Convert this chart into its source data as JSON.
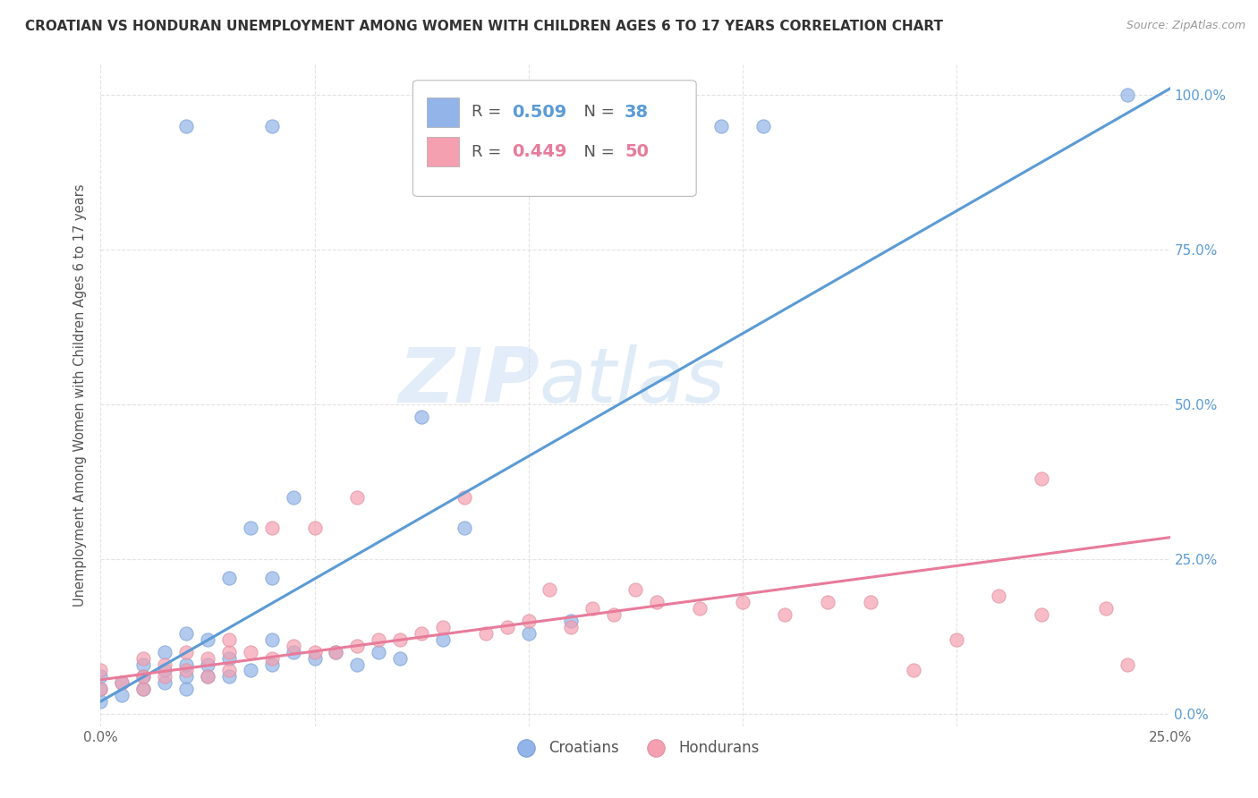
{
  "title": "CROATIAN VS HONDURAN UNEMPLOYMENT AMONG WOMEN WITH CHILDREN AGES 6 TO 17 YEARS CORRELATION CHART",
  "source": "Source: ZipAtlas.com",
  "ylabel": "Unemployment Among Women with Children Ages 6 to 17 years",
  "xlim": [
    0.0,
    0.25
  ],
  "ylim": [
    -0.02,
    1.05
  ],
  "x_ticks": [
    0.0,
    0.05,
    0.1,
    0.15,
    0.2,
    0.25
  ],
  "x_tick_labels": [
    "0.0%",
    "",
    "",
    "",
    "",
    "25.0%"
  ],
  "y_ticks": [
    0.0,
    0.25,
    0.5,
    0.75,
    1.0
  ],
  "y_tick_labels_right": [
    "0.0%",
    "25.0%",
    "50.0%",
    "75.0%",
    "100.0%"
  ],
  "croatian_color": "#92b4e8",
  "honduran_color": "#f4a0b0",
  "trend_color_croatian": "#5b9bd5",
  "trend_color_honduran": "#e87b9a",
  "watermark_zip": "ZIP",
  "watermark_atlas": "atlas",
  "legend_r_croatian": "R = 0.509",
  "legend_n_croatian": "N = 38",
  "legend_r_honduran": "R = 0.449",
  "legend_n_honduran": "N = 50",
  "cr_trend_x0": 0.0,
  "cr_trend_y0": 0.02,
  "cr_trend_x1": 0.25,
  "cr_trend_y1": 1.01,
  "ho_trend_x0": 0.0,
  "ho_trend_y0": 0.055,
  "ho_trend_x1": 0.25,
  "ho_trend_y1": 0.285,
  "croatian_x": [
    0.0,
    0.0,
    0.0,
    0.005,
    0.005,
    0.01,
    0.01,
    0.01,
    0.015,
    0.015,
    0.015,
    0.02,
    0.02,
    0.02,
    0.02,
    0.025,
    0.025,
    0.025,
    0.03,
    0.03,
    0.03,
    0.035,
    0.035,
    0.04,
    0.04,
    0.04,
    0.045,
    0.045,
    0.05,
    0.055,
    0.06,
    0.065,
    0.07,
    0.075,
    0.08,
    0.085,
    0.1,
    0.11
  ],
  "croatian_y": [
    0.02,
    0.04,
    0.06,
    0.03,
    0.05,
    0.04,
    0.06,
    0.08,
    0.05,
    0.07,
    0.1,
    0.04,
    0.06,
    0.08,
    0.13,
    0.06,
    0.08,
    0.12,
    0.06,
    0.09,
    0.22,
    0.07,
    0.3,
    0.08,
    0.12,
    0.22,
    0.1,
    0.35,
    0.09,
    0.1,
    0.08,
    0.1,
    0.09,
    0.48,
    0.12,
    0.3,
    0.13,
    0.15
  ],
  "croatian_x_top": [
    0.02,
    0.04,
    0.12,
    0.13,
    0.145,
    0.155,
    0.24
  ],
  "croatian_y_top": [
    0.95,
    0.95,
    0.95,
    0.95,
    0.95,
    0.95,
    1.0
  ],
  "honduran_x": [
    0.0,
    0.0,
    0.005,
    0.01,
    0.01,
    0.01,
    0.015,
    0.015,
    0.02,
    0.02,
    0.025,
    0.025,
    0.03,
    0.03,
    0.03,
    0.035,
    0.04,
    0.04,
    0.045,
    0.05,
    0.05,
    0.055,
    0.06,
    0.06,
    0.065,
    0.07,
    0.075,
    0.08,
    0.085,
    0.09,
    0.095,
    0.1,
    0.105,
    0.11,
    0.115,
    0.12,
    0.125,
    0.13,
    0.14,
    0.15,
    0.16,
    0.17,
    0.18,
    0.19,
    0.2,
    0.21,
    0.22,
    0.22,
    0.235,
    0.24
  ],
  "honduran_y": [
    0.04,
    0.07,
    0.05,
    0.04,
    0.06,
    0.09,
    0.06,
    0.08,
    0.07,
    0.1,
    0.06,
    0.09,
    0.07,
    0.1,
    0.12,
    0.1,
    0.09,
    0.3,
    0.11,
    0.1,
    0.3,
    0.1,
    0.11,
    0.35,
    0.12,
    0.12,
    0.13,
    0.14,
    0.35,
    0.13,
    0.14,
    0.15,
    0.2,
    0.14,
    0.17,
    0.16,
    0.2,
    0.18,
    0.17,
    0.18,
    0.16,
    0.18,
    0.18,
    0.07,
    0.12,
    0.19,
    0.38,
    0.16,
    0.17,
    0.08
  ],
  "background_color": "#ffffff",
  "grid_color": "#e0e0e0"
}
